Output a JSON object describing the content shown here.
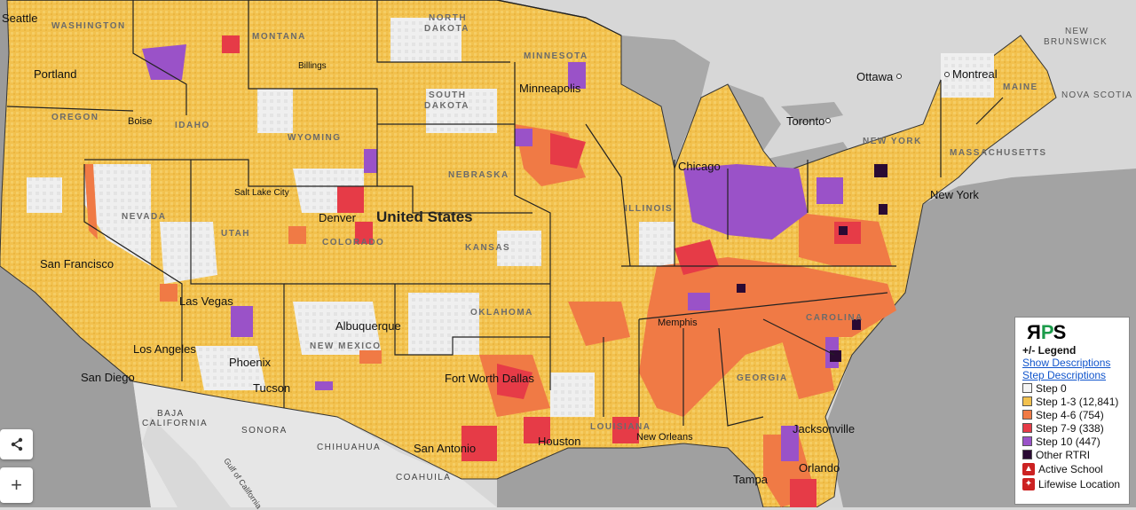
{
  "map": {
    "country_label": "United States",
    "state_labels": [
      {
        "id": "washington",
        "text": "WASHINGTON"
      },
      {
        "id": "montana",
        "text": "MONTANA"
      },
      {
        "id": "north-dakota-1",
        "text": "NORTH"
      },
      {
        "id": "north-dakota-2",
        "text": "DAKOTA"
      },
      {
        "id": "south-dakota-1",
        "text": "SOUTH"
      },
      {
        "id": "south-dakota-2",
        "text": "DAKOTA"
      },
      {
        "id": "minnesota",
        "text": "MINNESOTA"
      },
      {
        "id": "oregon",
        "text": "OREGON"
      },
      {
        "id": "idaho",
        "text": "IDAHO"
      },
      {
        "id": "wyoming",
        "text": "WYOMING"
      },
      {
        "id": "nebraska",
        "text": "NEBRASKA"
      },
      {
        "id": "nevada",
        "text": "NEVADA"
      },
      {
        "id": "utah",
        "text": "UTAH"
      },
      {
        "id": "colorado",
        "text": "COLORADO"
      },
      {
        "id": "kansas",
        "text": "KANSAS"
      },
      {
        "id": "illinois",
        "text": "ILLINOIS"
      },
      {
        "id": "new-mexico",
        "text": "NEW MEXICO"
      },
      {
        "id": "oklahoma",
        "text": "OKLAHOMA"
      },
      {
        "id": "louisiana",
        "text": "LOUISIANA"
      },
      {
        "id": "georgia",
        "text": "GEORGIA"
      },
      {
        "id": "new-york",
        "text": "NEW YORK"
      },
      {
        "id": "maine",
        "text": "MAINE"
      },
      {
        "id": "massachusetts",
        "text": "MASSACHUSETTS"
      },
      {
        "id": "north-carolina",
        "text": "CAROLINA"
      }
    ],
    "city_labels": [
      {
        "id": "seattle",
        "text": "Seattle"
      },
      {
        "id": "portland",
        "text": "Portland"
      },
      {
        "id": "boise",
        "text": "Boise"
      },
      {
        "id": "billings",
        "text": "Billings"
      },
      {
        "id": "minneapolis",
        "text": "Minneapolis"
      },
      {
        "id": "salt-lake-city",
        "text": "Salt Lake City"
      },
      {
        "id": "denver",
        "text": "Denver"
      },
      {
        "id": "san-francisco",
        "text": "San Francisco"
      },
      {
        "id": "las-vegas",
        "text": "Las Vegas"
      },
      {
        "id": "los-angeles",
        "text": "Los Angeles"
      },
      {
        "id": "san-diego",
        "text": "San Diego"
      },
      {
        "id": "phoenix",
        "text": "Phoenix"
      },
      {
        "id": "tucson",
        "text": "Tucson"
      },
      {
        "id": "albuquerque",
        "text": "Albuquerque"
      },
      {
        "id": "fort-worth-dallas",
        "text": "Fort Worth  Dallas"
      },
      {
        "id": "san-antonio",
        "text": "San Antonio"
      },
      {
        "id": "houston",
        "text": "Houston"
      },
      {
        "id": "new-orleans",
        "text": "New Orleans"
      },
      {
        "id": "memphis",
        "text": "Memphis"
      },
      {
        "id": "chicago",
        "text": "Chicago"
      },
      {
        "id": "toronto",
        "text": "Toronto"
      },
      {
        "id": "ottawa",
        "text": "Ottawa"
      },
      {
        "id": "montreal",
        "text": "Montreal"
      },
      {
        "id": "new-york",
        "text": "New York"
      },
      {
        "id": "jacksonville",
        "text": "Jacksonville"
      },
      {
        "id": "orlando",
        "text": "Orlando"
      },
      {
        "id": "tampa",
        "text": "Tampa"
      }
    ],
    "region_labels": [
      {
        "id": "new-brunswick-1",
        "text": "NEW"
      },
      {
        "id": "new-brunswick-2",
        "text": "BRUNSWICK"
      },
      {
        "id": "nova-scotia",
        "text": "NOVA SCOTIA"
      },
      {
        "id": "baja-california-1",
        "text": "BAJA"
      },
      {
        "id": "baja-california-2",
        "text": "CALIFORNIA"
      },
      {
        "id": "sonora",
        "text": "SONORA"
      },
      {
        "id": "chihuahua",
        "text": "CHIHUAHUA"
      },
      {
        "id": "coahuila",
        "text": "COAHUILA"
      },
      {
        "id": "gulf-of-california",
        "text": "Gulf of California"
      }
    ]
  },
  "legend": {
    "logo": {
      "r": "R",
      "p": "P",
      "s": "S"
    },
    "title": "+/- Legend",
    "show_descriptions": "Show Descriptions",
    "step_descriptions": "Step Descriptions",
    "items": [
      {
        "label": "Step 0",
        "color": "#f4f4f4"
      },
      {
        "label": "Step 1-3 (12,841)",
        "color": "#f2c14e"
      },
      {
        "label": "Step 4-6 (754)",
        "color": "#f07a45"
      },
      {
        "label": "Step 7-9 (338)",
        "color": "#e63b47"
      },
      {
        "label": "Step 10 (447)",
        "color": "#9a52c8"
      },
      {
        "label": "Other RTRI",
        "color": "#2a0a33"
      }
    ],
    "markers": [
      {
        "label": "Active School",
        "icon": "bell-icon",
        "color": "#cc2222"
      },
      {
        "label": "Lifewise Location",
        "icon": "star-icon",
        "color": "#cc2222"
      }
    ]
  },
  "controls": {
    "share_icon": "share-icon",
    "zoom_in": "+"
  }
}
